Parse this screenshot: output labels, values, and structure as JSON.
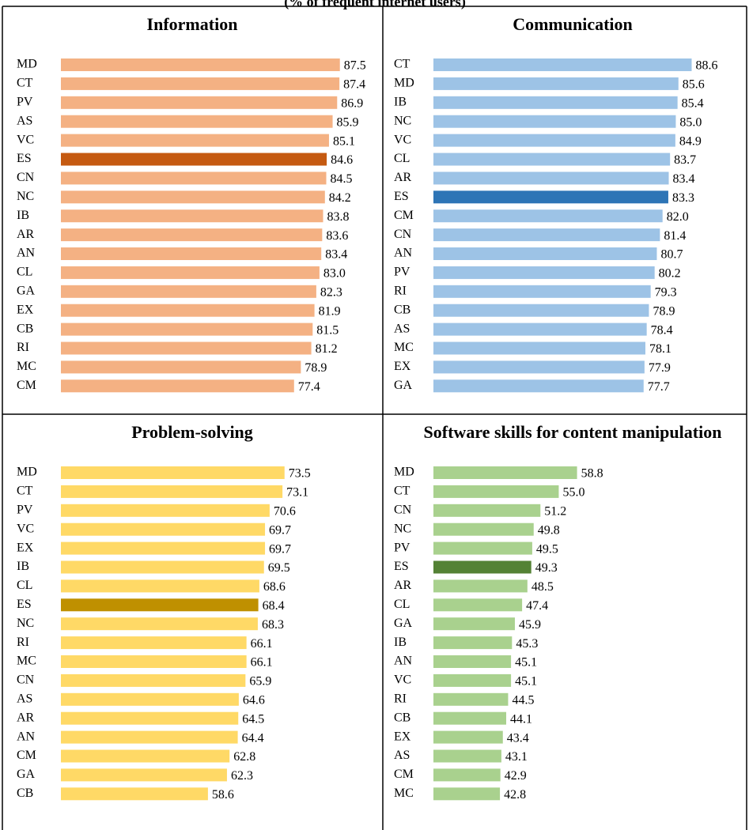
{
  "header": {
    "subtitle": "(% of frequent internet users)"
  },
  "chart_data": [
    {
      "type": "bar",
      "title": "Information",
      "color": "#f4b183",
      "highlight_category": "ES",
      "highlight_color": "#c55a11",
      "xlim": [
        26,
        94
      ],
      "categories": [
        "MD",
        "CT",
        "PV",
        "AS",
        "VC",
        "ES",
        "CN",
        "NC",
        "IB",
        "AR",
        "AN",
        "CL",
        "GA",
        "EX",
        "CB",
        "RI",
        "MC",
        "CM"
      ],
      "values": [
        87.5,
        87.4,
        86.9,
        85.9,
        85.1,
        84.6,
        84.5,
        84.2,
        83.8,
        83.6,
        83.4,
        83.0,
        82.3,
        81.9,
        81.5,
        81.2,
        78.9,
        77.4
      ],
      "value_labels": [
        "87.5",
        "87.4",
        "86.9",
        "85.9",
        "85.1",
        "84.6",
        "84.5",
        "84.2",
        "83.8",
        "83.6",
        "83.4",
        "83.0",
        "82.3",
        "81.9",
        "81.5",
        "81.2",
        "78.9",
        "77.4"
      ]
    },
    {
      "type": "bar",
      "title": "Communication",
      "color": "#9dc3e6",
      "highlight_category": "ES",
      "highlight_color": "#2e75b6",
      "xlim": [
        30,
        100
      ],
      "categories": [
        "CT",
        "MD",
        "IB",
        "NC",
        "VC",
        "CL",
        "AR",
        "ES",
        "CM",
        "CN",
        "AN",
        "PV",
        "RI",
        "CB",
        "AS",
        "MC",
        "EX",
        "GA"
      ],
      "values": [
        88.6,
        85.6,
        85.4,
        85.0,
        84.9,
        83.7,
        83.4,
        83.3,
        82.0,
        81.4,
        80.7,
        80.2,
        79.3,
        78.9,
        78.4,
        78.1,
        77.9,
        77.7
      ],
      "value_labels": [
        "88.6",
        "85.6",
        "85.4",
        "85.0",
        "84.9",
        "83.7",
        "83.4",
        "83.3",
        "82.0",
        "81.4",
        "80.7",
        "80.2",
        "79.3",
        "78.9",
        "78.4",
        "78.1",
        "77.9",
        "77.7"
      ]
    },
    {
      "type": "bar",
      "title": "Problem-solving",
      "color": "#ffd966",
      "highlight_category": "ES",
      "highlight_color": "#bf9000",
      "xlim": [
        30,
        90
      ],
      "categories": [
        "MD",
        "CT",
        "PV",
        "VC",
        "EX",
        "IB",
        "CL",
        "ES",
        "NC",
        "RI",
        "MC",
        "CN",
        "AS",
        "AR",
        "AN",
        "CM",
        "GA",
        "CB"
      ],
      "values": [
        73.5,
        73.1,
        70.6,
        69.7,
        69.7,
        69.5,
        68.6,
        68.4,
        68.3,
        66.1,
        66.1,
        65.9,
        64.6,
        64.5,
        64.4,
        62.8,
        62.3,
        58.6
      ],
      "value_labels": [
        "73.5",
        "73.1",
        "70.6",
        "69.7",
        "69.7",
        "69.5",
        "68.6",
        "68.4",
        "68.3",
        "66.1",
        "66.1",
        "65.9",
        "64.6",
        "64.5",
        "64.4",
        "62.8",
        "62.3",
        "58.6"
      ]
    },
    {
      "type": "bar",
      "title": "Software skills for content manipulation",
      "color": "#a9d18e",
      "highlight_category": "ES",
      "highlight_color": "#548235",
      "xlim": [
        29,
        93
      ],
      "categories": [
        "MD",
        "CT",
        "CN",
        "NC",
        "PV",
        "ES",
        "AR",
        "CL",
        "GA",
        "IB",
        "AN",
        "VC",
        "RI",
        "CB",
        "EX",
        "AS",
        "CM",
        "MC"
      ],
      "values": [
        58.8,
        55.0,
        51.2,
        49.8,
        49.5,
        49.3,
        48.5,
        47.4,
        45.9,
        45.3,
        45.1,
        45.1,
        44.5,
        44.1,
        43.4,
        43.1,
        42.9,
        42.8
      ],
      "value_labels": [
        "58.8",
        "55.0",
        "51.2",
        "49.8",
        "49.5",
        "49.3",
        "48.5",
        "47.4",
        "45.9",
        "45.3",
        "45.1",
        "45.1",
        "44.5",
        "44.1",
        "43.4",
        "43.1",
        "42.9",
        "42.8"
      ]
    }
  ]
}
